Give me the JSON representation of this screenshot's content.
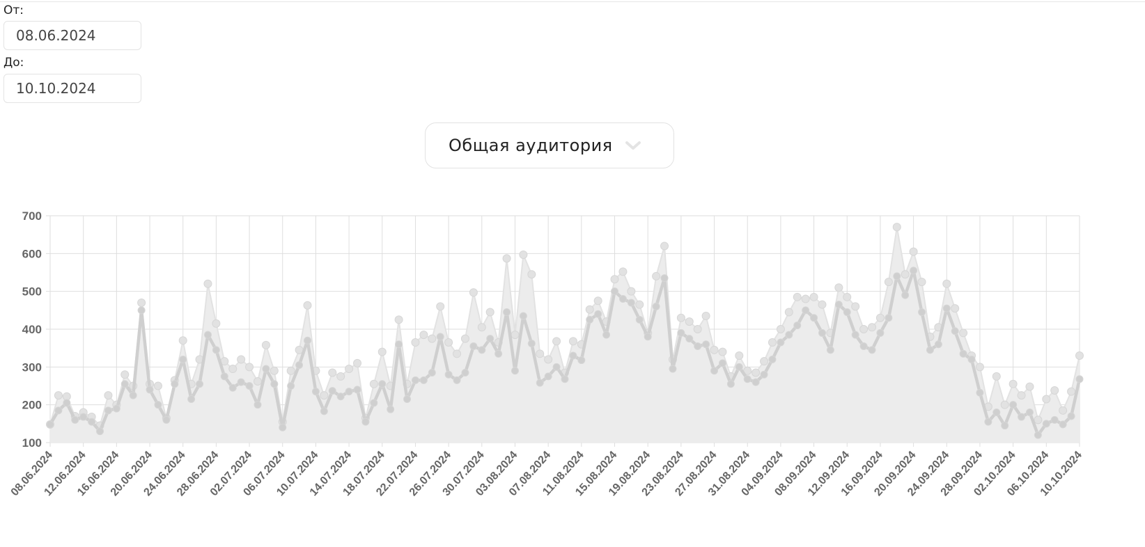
{
  "filters": {
    "from_label": "От:",
    "from_value": "08.06.2024",
    "to_label": "До:",
    "to_value": "10.10.2024"
  },
  "audience_select": {
    "selected": "Общая аудитория",
    "icon": "chevron-down-icon"
  },
  "colors": {
    "upper_series": "#e2e2e2",
    "lower_series": "#cfcfcf",
    "area_fill": "#ececec",
    "grid": "#dedede"
  },
  "chart_data": {
    "type": "area",
    "ylim": [
      100,
      700
    ],
    "yticks": [
      100,
      200,
      300,
      400,
      500,
      600,
      700
    ],
    "xlabels": [
      "08.06.2024",
      "12.06.2024",
      "16.06.2024",
      "20.06.2024",
      "24.06.2024",
      "28.06.2024",
      "02.07.2024",
      "06.07.2024",
      "10.07.2024",
      "14.07.2024",
      "18.07.2024",
      "22.07.2024",
      "26.07.2024",
      "30.07.2024",
      "03.08.2024",
      "07.08.2024",
      "11.08.2024",
      "15.08.2024",
      "19.08.2024",
      "23.08.2024",
      "27.08.2024",
      "31.08.2024",
      "04.09.2024",
      "08.09.2024",
      "12.09.2024",
      "16.09.2024",
      "20.09.2024",
      "24.09.2024",
      "28.09.2024",
      "02.10.2024",
      "06.10.2024",
      "10.10.2024"
    ],
    "x_start": "08.06.2024",
    "x_end": "10.10.2024",
    "grid": true,
    "legend": "none",
    "series": [
      {
        "values": [
          148,
          225,
          222,
          170,
          180,
          168,
          145,
          225,
          200,
          280,
          250,
          470,
          255,
          250,
          165,
          265,
          370,
          255,
          320,
          520,
          415,
          315,
          295,
          320,
          300,
          262,
          358,
          290,
          155,
          290,
          345,
          463,
          290,
          225,
          285,
          275,
          295,
          310,
          165,
          255,
          340,
          250,
          425,
          255,
          365,
          385,
          375,
          460,
          365,
          335,
          375,
          497,
          405,
          445,
          365,
          587,
          385,
          597,
          545,
          335,
          320,
          368,
          285,
          368,
          360,
          452,
          475,
          420,
          532,
          552,
          500,
          465,
          390,
          540,
          620,
          320,
          430,
          420,
          400,
          435,
          345,
          340,
          275,
          330,
          290,
          285,
          315,
          365,
          400,
          445,
          485,
          480,
          485,
          465,
          390,
          510,
          485,
          460,
          400,
          405,
          430,
          525,
          670,
          545,
          605,
          525,
          380,
          405,
          520,
          455,
          390,
          330,
          300,
          195,
          275,
          200,
          255,
          225,
          248,
          160,
          215,
          238,
          185,
          235,
          330
        ]
      },
      {
        "values": [
          148,
          185,
          205,
          160,
          168,
          155,
          130,
          185,
          190,
          255,
          225,
          450,
          240,
          200,
          160,
          255,
          320,
          215,
          255,
          385,
          345,
          275,
          245,
          260,
          250,
          200,
          295,
          255,
          140,
          250,
          305,
          370,
          235,
          183,
          237,
          222,
          235,
          240,
          155,
          205,
          255,
          188,
          360,
          215,
          265,
          265,
          285,
          380,
          280,
          265,
          285,
          355,
          345,
          375,
          335,
          445,
          290,
          435,
          362,
          258,
          275,
          300,
          268,
          330,
          318,
          425,
          440,
          385,
          500,
          480,
          470,
          425,
          380,
          460,
          535,
          295,
          390,
          375,
          355,
          360,
          290,
          310,
          255,
          300,
          268,
          260,
          280,
          320,
          365,
          385,
          410,
          450,
          430,
          390,
          345,
          465,
          445,
          385,
          355,
          345,
          390,
          430,
          540,
          490,
          555,
          445,
          345,
          360,
          455,
          395,
          335,
          320,
          232,
          155,
          180,
          145,
          200,
          168,
          180,
          120,
          150,
          160,
          148,
          170,
          268
        ]
      }
    ]
  }
}
